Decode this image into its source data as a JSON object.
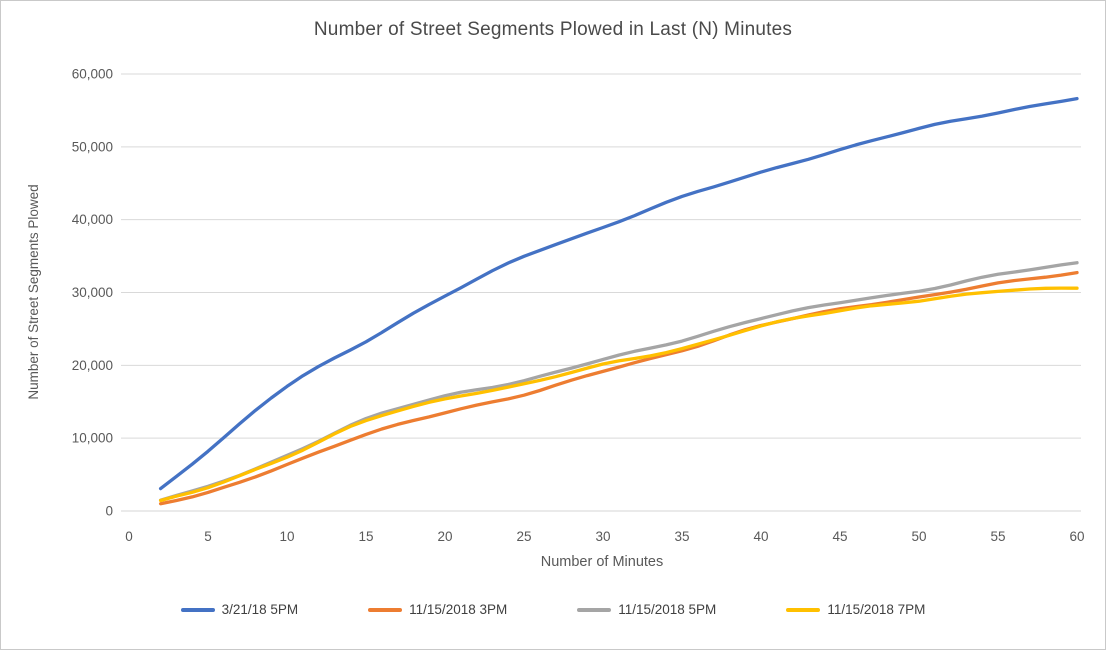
{
  "window": {
    "background": "#ffffff",
    "border_color": "#c9c9c9"
  },
  "colors": {
    "gridline": "#d9d9d9",
    "axis_line": "#d6d6d6",
    "axis_text": "#595959",
    "title_text": "#4a4a4a",
    "legend_text": "#404040"
  },
  "chart_data": {
    "type": "line",
    "title": "Number of Street Segments Plowed in Last (N) Minutes",
    "xlabel": "Number of Minutes",
    "ylabel": "Number of Street Segments Plowed",
    "xlim": [
      0,
      60
    ],
    "ylim": [
      0,
      60000
    ],
    "xticks": [
      0,
      5,
      10,
      15,
      20,
      25,
      30,
      35,
      40,
      45,
      50,
      55,
      60
    ],
    "yticks": [
      0,
      10000,
      20000,
      30000,
      40000,
      50000,
      60000
    ],
    "ytick_labels": [
      "0",
      "10,000",
      "20,000",
      "30,000",
      "40,000",
      "50,000",
      "60,000"
    ],
    "grid": "horizontal-only",
    "legend_position": "bottom",
    "x": [
      2,
      5,
      10,
      15,
      20,
      25,
      30,
      35,
      40,
      45,
      50,
      55,
      60
    ],
    "series": [
      {
        "name": "3/21/18 5PM",
        "color": "#4472C4",
        "values": [
          3000,
          8200,
          17200,
          23300,
          29500,
          35000,
          38900,
          43100,
          46500,
          49600,
          52500,
          54700,
          56700
        ]
      },
      {
        "name": "11/15/2018 3PM",
        "color": "#ED7D31",
        "values": [
          1000,
          2500,
          6400,
          10500,
          13500,
          16000,
          19200,
          22000,
          25500,
          27700,
          29300,
          31300,
          32700
        ]
      },
      {
        "name": "11/15/2018 5PM",
        "color": "#A5A5A5",
        "values": [
          1500,
          3400,
          7600,
          12600,
          15800,
          17900,
          20800,
          23400,
          26500,
          28600,
          30200,
          32500,
          34000
        ]
      },
      {
        "name": "11/15/2018 7PM",
        "color": "#FFC000",
        "values": [
          1400,
          3300,
          7400,
          12400,
          15400,
          17400,
          20100,
          22300,
          25400,
          27500,
          28900,
          30200,
          30600
        ]
      }
    ]
  }
}
